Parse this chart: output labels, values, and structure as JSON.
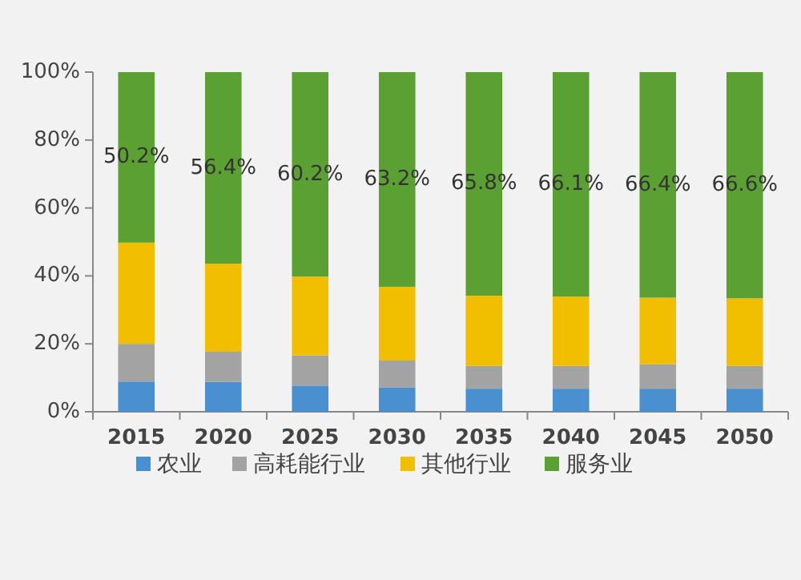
{
  "chart_data": {
    "type": "bar",
    "stacked": true,
    "categories": [
      "2015",
      "2020",
      "2025",
      "2030",
      "2035",
      "2040",
      "2045",
      "2050"
    ],
    "series": [
      {
        "name": "农业",
        "color": "#4a8fd0",
        "values": [
          8.9,
          8.8,
          7.7,
          7.2,
          6.8,
          6.8,
          6.8,
          6.8
        ]
      },
      {
        "name": "高耗能行业",
        "color": "#a3a3a3",
        "values": [
          11.1,
          8.9,
          8.9,
          7.9,
          6.7,
          6.7,
          7.2,
          6.7
        ]
      },
      {
        "name": "其他行业",
        "color": "#f2be00",
        "values": [
          29.8,
          25.9,
          23.2,
          21.7,
          20.7,
          20.4,
          19.6,
          19.9
        ]
      },
      {
        "name": "服务业",
        "color": "#5ba033",
        "values": [
          50.2,
          56.4,
          60.2,
          63.2,
          65.8,
          66.1,
          66.4,
          66.6
        ],
        "value_labels": [
          "50.2%",
          "56.4%",
          "60.2%",
          "63.2%",
          "65.8%",
          "66.1%",
          "66.4%",
          "66.6%"
        ]
      }
    ],
    "ylim": [
      0,
      100
    ],
    "yticks": [
      {
        "value": 0,
        "label": "0%"
      },
      {
        "value": 20,
        "label": "20%"
      },
      {
        "value": 40,
        "label": "40%"
      },
      {
        "value": 60,
        "label": "60%"
      },
      {
        "value": 80,
        "label": "80%"
      },
      {
        "value": 100,
        "label": "100%"
      }
    ],
    "legend": "bottom"
  }
}
